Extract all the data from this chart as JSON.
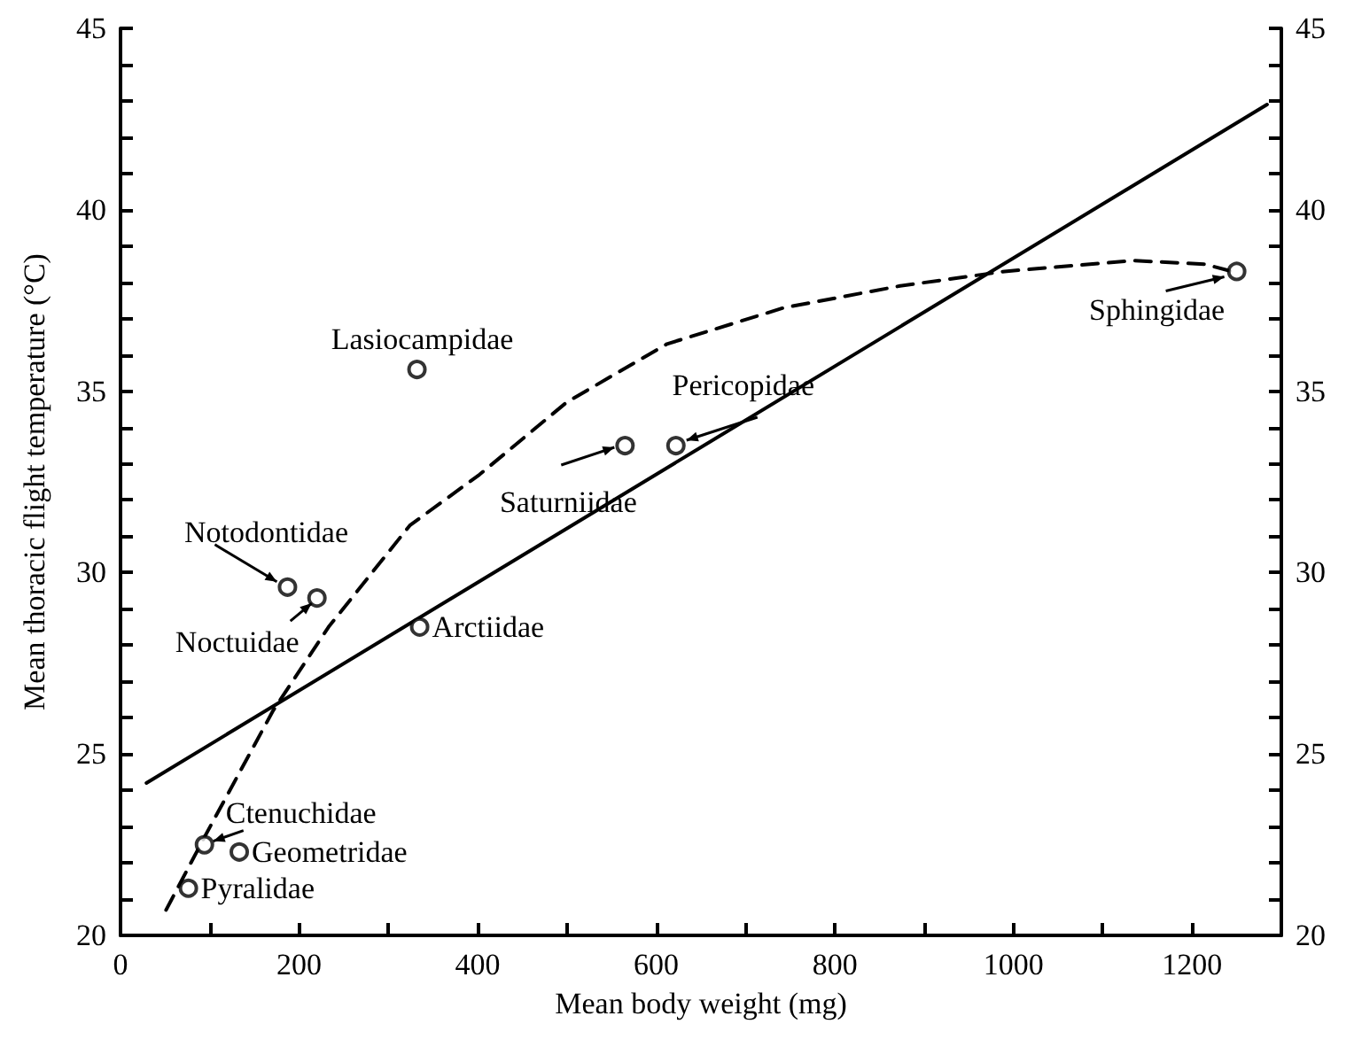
{
  "chart_data": {
    "type": "scatter",
    "xlabel": "Mean body weight (mg)",
    "ylabel": "Mean thoracic flight temperature (°C)",
    "xlim": [
      0,
      1300
    ],
    "xticks": [
      0,
      {
        "value": 100,
        "label": null
      },
      200,
      {
        "value": 300,
        "label": null
      },
      400,
      {
        "value": 500,
        "label": null
      },
      600,
      {
        "value": 700,
        "label": null
      },
      800,
      {
        "value": 900,
        "label": null
      },
      1000,
      {
        "value": 1100,
        "label": null
      },
      1200
    ],
    "ylim": [
      20,
      45
    ],
    "yticks": [
      20,
      {
        "value": 21,
        "label": null
      },
      {
        "value": 22,
        "label": null
      },
      {
        "value": 23,
        "label": null
      },
      {
        "value": 24,
        "label": null
      },
      25,
      {
        "value": 26,
        "label": null
      },
      {
        "value": 27,
        "label": null
      },
      {
        "value": 28,
        "label": null
      },
      {
        "value": 29,
        "label": null
      },
      30,
      {
        "value": 31,
        "label": null
      },
      {
        "value": 32,
        "label": null
      },
      {
        "value": 33,
        "label": null
      },
      {
        "value": 34,
        "label": null
      },
      35,
      {
        "value": 36,
        "label": null
      },
      {
        "value": 37,
        "label": null
      },
      {
        "value": 38,
        "label": null
      },
      {
        "value": 39,
        "label": null
      },
      40,
      {
        "value": 41,
        "label": null
      },
      {
        "value": 42,
        "label": null
      },
      {
        "value": 43,
        "label": null
      },
      {
        "value": 44,
        "label": null
      },
      45
    ],
    "y2lim": [
      20,
      45
    ],
    "y2ticks": [
      20,
      {
        "value": 21,
        "label": null
      },
      {
        "value": 22,
        "label": null
      },
      {
        "value": 23,
        "label": null
      },
      {
        "value": 24,
        "label": null
      },
      25,
      {
        "value": 26,
        "label": null
      },
      {
        "value": 27,
        "label": null
      },
      {
        "value": 28,
        "label": null
      },
      {
        "value": 29,
        "label": null
      },
      30,
      {
        "value": 31,
        "label": null
      },
      {
        "value": 32,
        "label": null
      },
      {
        "value": 33,
        "label": null
      },
      {
        "value": 34,
        "label": null
      },
      35,
      {
        "value": 36,
        "label": null
      },
      {
        "value": 37,
        "label": null
      },
      {
        "value": 38,
        "label": null
      },
      {
        "value": 39,
        "label": null
      },
      40,
      {
        "value": 41,
        "label": null
      },
      {
        "value": 42,
        "label": null
      },
      {
        "value": 43,
        "label": null
      },
      {
        "value": 44,
        "label": null
      },
      45
    ],
    "grid": false,
    "series": [
      {
        "marker": "circle",
        "color": "#000000",
        "x": [
          76,
          94,
          133,
          187,
          220,
          335,
          332,
          565,
          622,
          1250
        ],
        "values": [
          21.3,
          22.5,
          22.3,
          29.6,
          29.3,
          28.5,
          35.6,
          33.5,
          33.5,
          38.3
        ]
      },
      {
        "type": "line",
        "marker": "none",
        "line_style": "solid",
        "color": "#000000",
        "x": [
          29,
          1284
        ],
        "values": [
          24.2,
          42.9
        ]
      },
      {
        "type": "line",
        "marker": "none",
        "line_style": "dashed",
        "color": "#000000",
        "x": [
          51,
          96,
          171,
          233,
          324,
          402,
          500,
          612,
          743,
          873,
          990,
          1135,
          1214,
          1245
        ],
        "values": [
          20.7,
          22.8,
          26.2,
          28.5,
          31.3,
          32.7,
          34.7,
          36.3,
          37.3,
          37.9,
          38.3,
          38.6,
          38.5,
          38.3
        ]
      }
    ],
    "annotations": [
      {
        "text": "Pyralidae",
        "x": 76,
        "y": 21.3
      },
      {
        "text": "Ctenuchidae",
        "x": 94,
        "y": 22.5
      },
      {
        "text": "Geometridae",
        "x": 133,
        "y": 22.3
      },
      {
        "text": "Notodontidae",
        "x": 187,
        "y": 29.6
      },
      {
        "text": "Noctuidae",
        "x": 220,
        "y": 29.3
      },
      {
        "text": "Arctiidae",
        "x": 335,
        "y": 28.5
      },
      {
        "text": "Lasiocampidae",
        "x": 332,
        "y": 35.6
      },
      {
        "text": "Saturniidae",
        "x": 565,
        "y": 33.5
      },
      {
        "text": "Pericopidae",
        "x": 622,
        "y": 33.5
      },
      {
        "text": "Sphingidae",
        "x": 1250,
        "y": 38.3
      }
    ]
  }
}
